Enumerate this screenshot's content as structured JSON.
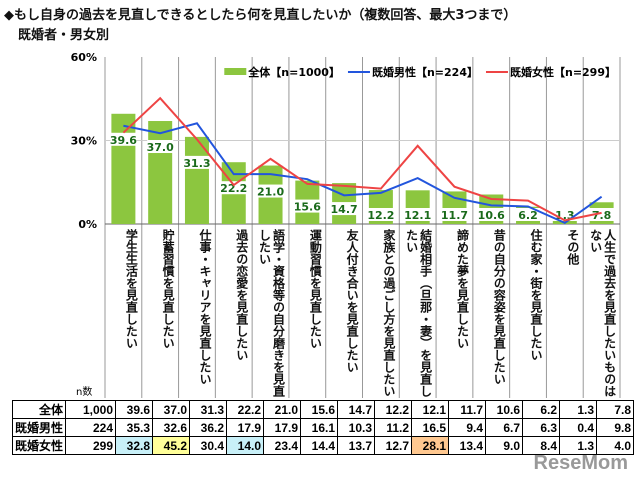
{
  "title": "◆もし自身の過去を見直しできるとしたら何を見直したいか（複数回答、最大3つまで）",
  "subtitle": "既婚者・男女別",
  "n_label": "n数",
  "watermark": "ReseMom",
  "chart_data": {
    "type": "bar+line",
    "ylim": [
      0,
      60
    ],
    "yticks": [
      "0%",
      "30%",
      "60%"
    ],
    "legend_position": "top-right",
    "categories": [
      "学生生活を見直したい",
      "貯蓄習慣を見直したい",
      "仕事・キャリアを見直したい",
      "過去の恋愛を見直したい",
      "語学・資格等の自分磨きを見直したい",
      "運動習慣を見直したい",
      "友人付き合いを見直したい",
      "家族との過ごし方を見直したい",
      "結婚相手（旦那・妻）を見直したい",
      "諦めた夢を見直したい",
      "昔の自分の容姿を見直したい",
      "住む家・街を見直したい",
      "その他",
      "人生で過去を見直したいものはない"
    ],
    "series": [
      {
        "name": "全体【n=1000】",
        "n": "1,000",
        "type": "bar",
        "color": "#8cc63f",
        "values": [
          39.6,
          37.0,
          31.3,
          22.2,
          21.0,
          15.6,
          14.7,
          12.2,
          12.1,
          11.7,
          10.6,
          6.2,
          1.3,
          7.8
        ]
      },
      {
        "name": "既婚男性【n=224】",
        "n": "224",
        "type": "line",
        "color": "#2255dd",
        "values": [
          35.3,
          32.6,
          36.2,
          17.9,
          17.9,
          16.1,
          10.3,
          11.2,
          16.5,
          9.4,
          6.7,
          6.3,
          0.4,
          9.8
        ]
      },
      {
        "name": "既婚女性【n=299】",
        "n": "299",
        "type": "line",
        "color": "#ee4444",
        "values": [
          32.8,
          45.2,
          30.4,
          14.0,
          23.4,
          14.4,
          13.7,
          12.7,
          28.1,
          13.4,
          9.0,
          8.4,
          1.3,
          4.0
        ]
      }
    ],
    "table_row_labels": [
      "全体",
      "既婚男性",
      "既婚女性"
    ],
    "highlights": {
      "2": {
        "0": "#c8f0f8",
        "1": "#ffff99",
        "3": "#c8f0f8",
        "8": "#ffc890"
      }
    }
  }
}
